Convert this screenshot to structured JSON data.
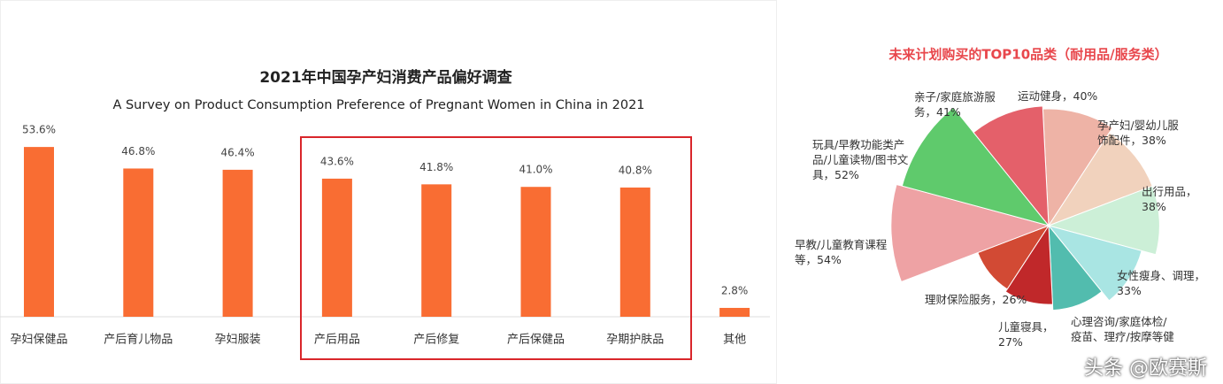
{
  "chart_data": [
    {
      "type": "bar",
      "title": "2021年中国孕产妇消费产品偏好调查",
      "subtitle": "A Survey on Product Consumption Preference of Pregnant Women in China in 2021",
      "categories": [
        "孕妇保健品",
        "产后育儿物品",
        "孕妇服装",
        "产后用品",
        "产后修复",
        "产后保健品",
        "孕期护肤品",
        "其他"
      ],
      "values": [
        53.6,
        46.8,
        46.4,
        43.6,
        41.8,
        41.0,
        40.8,
        2.8
      ],
      "value_labels": [
        "53.6%",
        "46.8%",
        "46.4%",
        "43.6%",
        "41.8%",
        "41.0%",
        "40.8%",
        "2.8%"
      ],
      "color": "#f96d33"
    },
    {
      "type": "rose",
      "title": "未来计划购买的TOP10品类（耐用品/服务类）",
      "categories": [
        "运动健身，",
        "孕产妇/婴幼儿服饰配件，",
        "出行用品，",
        "女性瘦身、调理，",
        "心理咨询/家庭体检/疫苗、理疗/按摩等健",
        "儿童寝具，",
        "理财保险服务，",
        "早教/儿童教育课程等，",
        "玩具/早教功能类产品/儿童读物/图书文具，",
        "亲子/家庭旅游服务，"
      ],
      "values": [
        40,
        38,
        38,
        33,
        29,
        27,
        26,
        54,
        52,
        41
      ],
      "value_labels": [
        "40%",
        "38%",
        "38%",
        "33%",
        null,
        "27%",
        "26%",
        "54%",
        "52%",
        "41%"
      ],
      "colors": [
        "#eeb3a6",
        "#f1d2bd",
        "#ccefd7",
        "#a9e5e3",
        "#52bcae",
        "#c0282a",
        "#d24a34",
        "#eea2a4",
        "#5fca6c",
        "#e4606a"
      ]
    }
  ],
  "watermark": "头条 @欧赛斯"
}
